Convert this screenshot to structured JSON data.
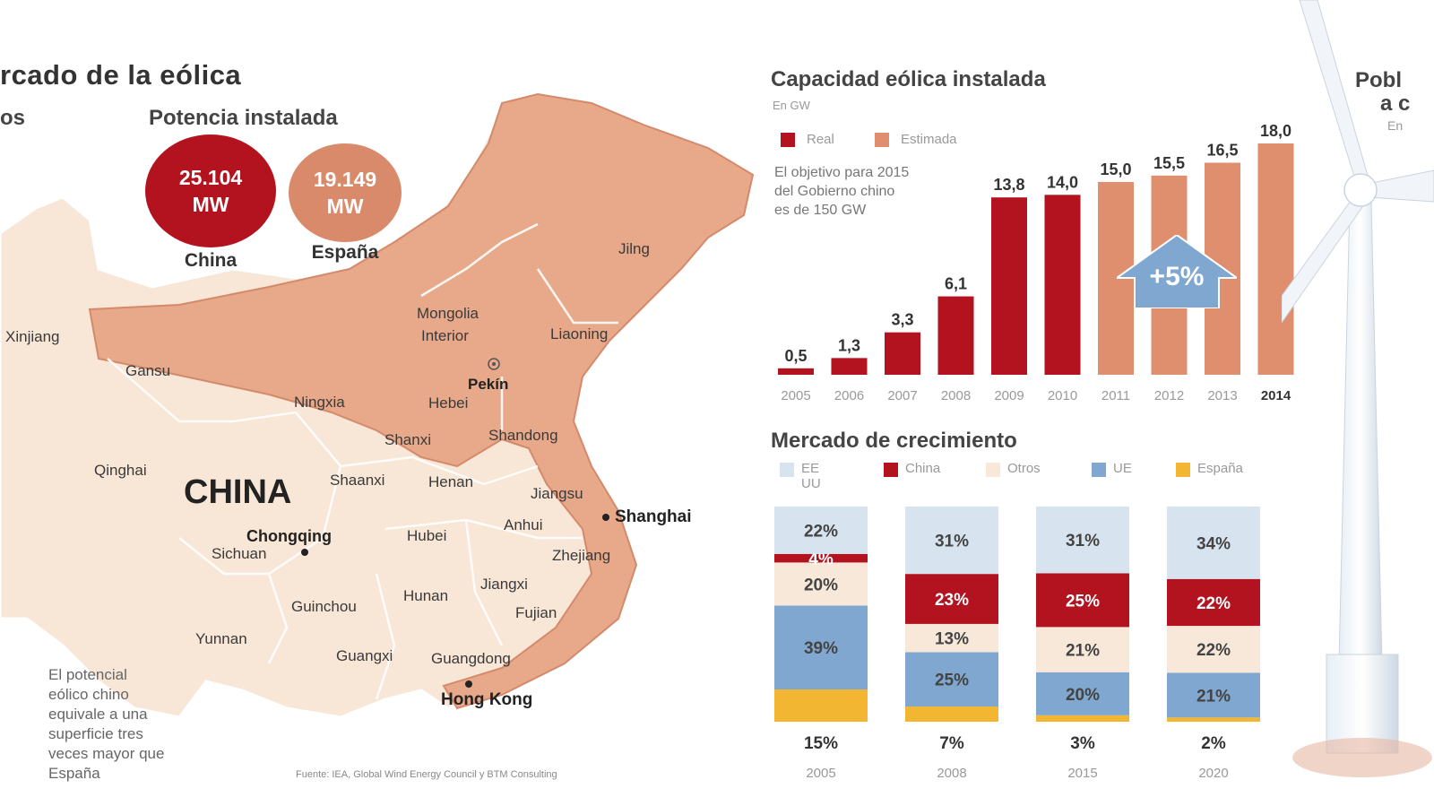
{
  "left": {
    "title": "rcado de la eólica",
    "col1_fragment": "os",
    "potencia_title": "Potencia instalada",
    "china_bubble": {
      "line1": "25.104",
      "line2": "MW",
      "caption": "China",
      "color": "#b3121f"
    },
    "spain_bubble": {
      "line1": "19.149",
      "line2": "MW",
      "caption": "España",
      "color": "#d98a6a"
    },
    "map_label_china": "CHINA",
    "provinces": [
      "Xinjiang",
      "Gansu",
      "Mongolia",
      "Interior",
      "Jilng",
      "Liaoning",
      "Pekín",
      "Ningxia",
      "Hebei",
      "Shanxi",
      "Shandong",
      "Qinghai",
      "Shaanxi",
      "Henan",
      "Jiangsu",
      "Shanghai",
      "Anhui",
      "Chongqing",
      "Sichuan",
      "Hubei",
      "Zhejiang",
      "Jiangxi",
      "Hunan",
      "Guinchou",
      "Fujian",
      "Yunnan",
      "Guangxi",
      "Guangdong",
      "Hong Kong"
    ],
    "note": [
      "El potencial",
      "eólico chino",
      "equivale a una",
      "superficie tres",
      "veces mayor que",
      "España"
    ],
    "source": "Fuente: IEA, Global Wind Energy Council y BTM Consulting"
  },
  "capacity": {
    "title": "Capacidad eólica instalada",
    "unit": "En GW",
    "legend": [
      {
        "label": "Real",
        "color": "#b3121f"
      },
      {
        "label": "Estimada",
        "color": "#df8e6e"
      }
    ],
    "note": [
      "El objetivo para 2015",
      "del Gobierno chino",
      "es de 150 GW"
    ],
    "badge": "+5%"
  },
  "growth": {
    "title": "Mercado de crecimiento",
    "legend": [
      {
        "label": "EE UU",
        "color": "#d7e3ee"
      },
      {
        "label": "China",
        "color": "#b3121f"
      },
      {
        "label": "Otros",
        "color": "#f7e8da"
      },
      {
        "label": "UE",
        "color": "#7fa7cf"
      },
      {
        "label": "España",
        "color": "#f2b632"
      }
    ]
  },
  "right_fragment": {
    "line1": "Pobl",
    "line2": "a c",
    "line3": "En"
  },
  "chart_data": [
    {
      "type": "bar",
      "title": "Capacidad eólica instalada",
      "ylabel": "En GW",
      "categories": [
        "2005",
        "2006",
        "2007",
        "2008",
        "2009",
        "2010",
        "2011",
        "2012",
        "2013",
        "2014"
      ],
      "series": [
        {
          "name": "Real",
          "values": [
            0.5,
            1.3,
            3.3,
            6.1,
            13.8,
            14.0,
            null,
            null,
            null,
            null
          ]
        },
        {
          "name": "Estimada",
          "values": [
            null,
            null,
            null,
            null,
            null,
            null,
            15.0,
            15.5,
            16.5,
            18.0
          ]
        }
      ],
      "value_labels": [
        "0,5",
        "1,3",
        "3,3",
        "6,1",
        "13,8",
        "14,0",
        "15,0",
        "15,5",
        "16,5",
        "18,0"
      ],
      "ylim": [
        0,
        18
      ],
      "grid": false
    },
    {
      "type": "bar",
      "title": "Mercado de crecimiento",
      "categories": [
        "2005",
        "2008",
        "2015",
        "2020"
      ],
      "series": [
        {
          "name": "España",
          "values": [
            15,
            7,
            3,
            2
          ],
          "labels": [
            "15%",
            "7%",
            "3%",
            "2%"
          ]
        },
        {
          "name": "UE",
          "values": [
            39,
            25,
            20,
            21
          ],
          "labels": [
            "39%",
            "25%",
            "20%",
            "21%"
          ]
        },
        {
          "name": "Otros",
          "values": [
            20,
            13,
            21,
            22
          ],
          "labels": [
            "20%",
            "13%",
            "21%",
            "22%"
          ]
        },
        {
          "name": "China",
          "values": [
            4,
            23,
            25,
            22
          ],
          "labels": [
            "4%",
            "23%",
            "25%",
            "22%"
          ]
        },
        {
          "name": "EE UU",
          "values": [
            22,
            31,
            31,
            34
          ],
          "labels": [
            "22%",
            "31%",
            "31%",
            "34%"
          ]
        }
      ],
      "stacked": true,
      "legend_position": "top"
    }
  ]
}
